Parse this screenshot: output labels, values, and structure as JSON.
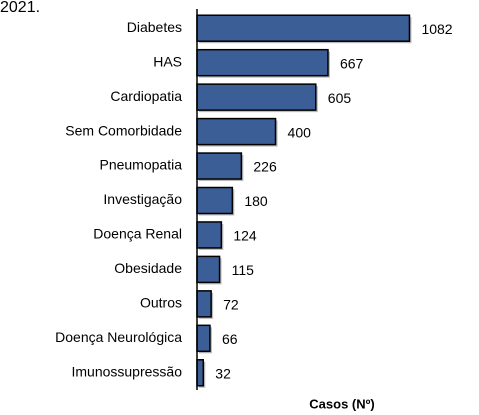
{
  "chart_data": {
    "type": "barh",
    "title": "2021.",
    "categories": [
      "Diabetes",
      "HAS",
      "Cardiopatia",
      "Sem Comorbidade",
      "Pneumopatia",
      "Investigação",
      "Doença Renal",
      "Obesidade",
      "Outros",
      "Doença Neurológica",
      "Imunossupressão"
    ],
    "values": [
      1082,
      667,
      605,
      400,
      226,
      180,
      124,
      115,
      72,
      66,
      32
    ],
    "color": "#3b5e96",
    "xlim": [
      0,
      1100
    ],
    "xlabel": "Casos (Nº)"
  }
}
